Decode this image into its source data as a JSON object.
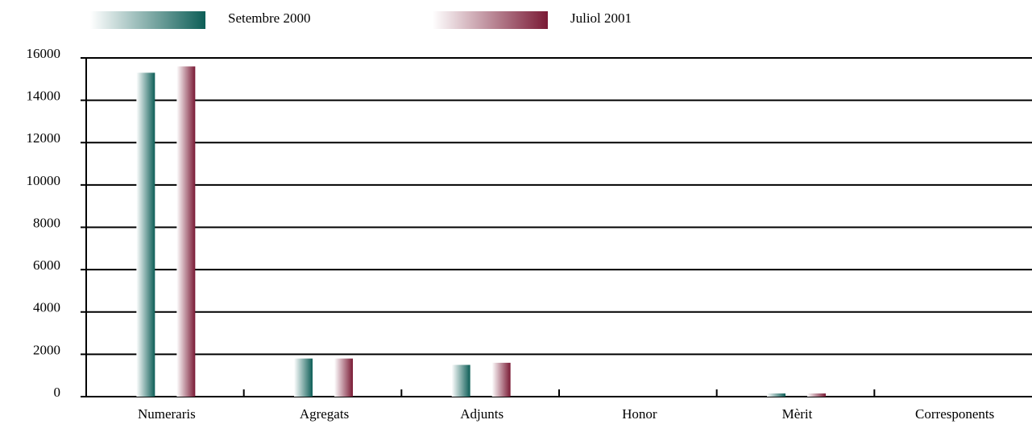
{
  "chart_data": {
    "type": "bar",
    "categories": [
      "Numeraris",
      "Agregats",
      "Adjunts",
      "Honor",
      "Mèrit",
      "Corresponents"
    ],
    "series": [
      {
        "name": "Setembre 2000",
        "color": "#0d5e57",
        "values": [
          15300,
          1800,
          1500,
          0,
          150,
          0
        ]
      },
      {
        "name": "Juliol 2001",
        "color": "#7a1a35",
        "values": [
          15600,
          1800,
          1600,
          0,
          150,
          0
        ]
      }
    ],
    "ylim": [
      0,
      16000
    ],
    "yticks": [
      0,
      2000,
      4000,
      6000,
      8000,
      10000,
      12000,
      14000,
      16000
    ],
    "grid": true
  }
}
